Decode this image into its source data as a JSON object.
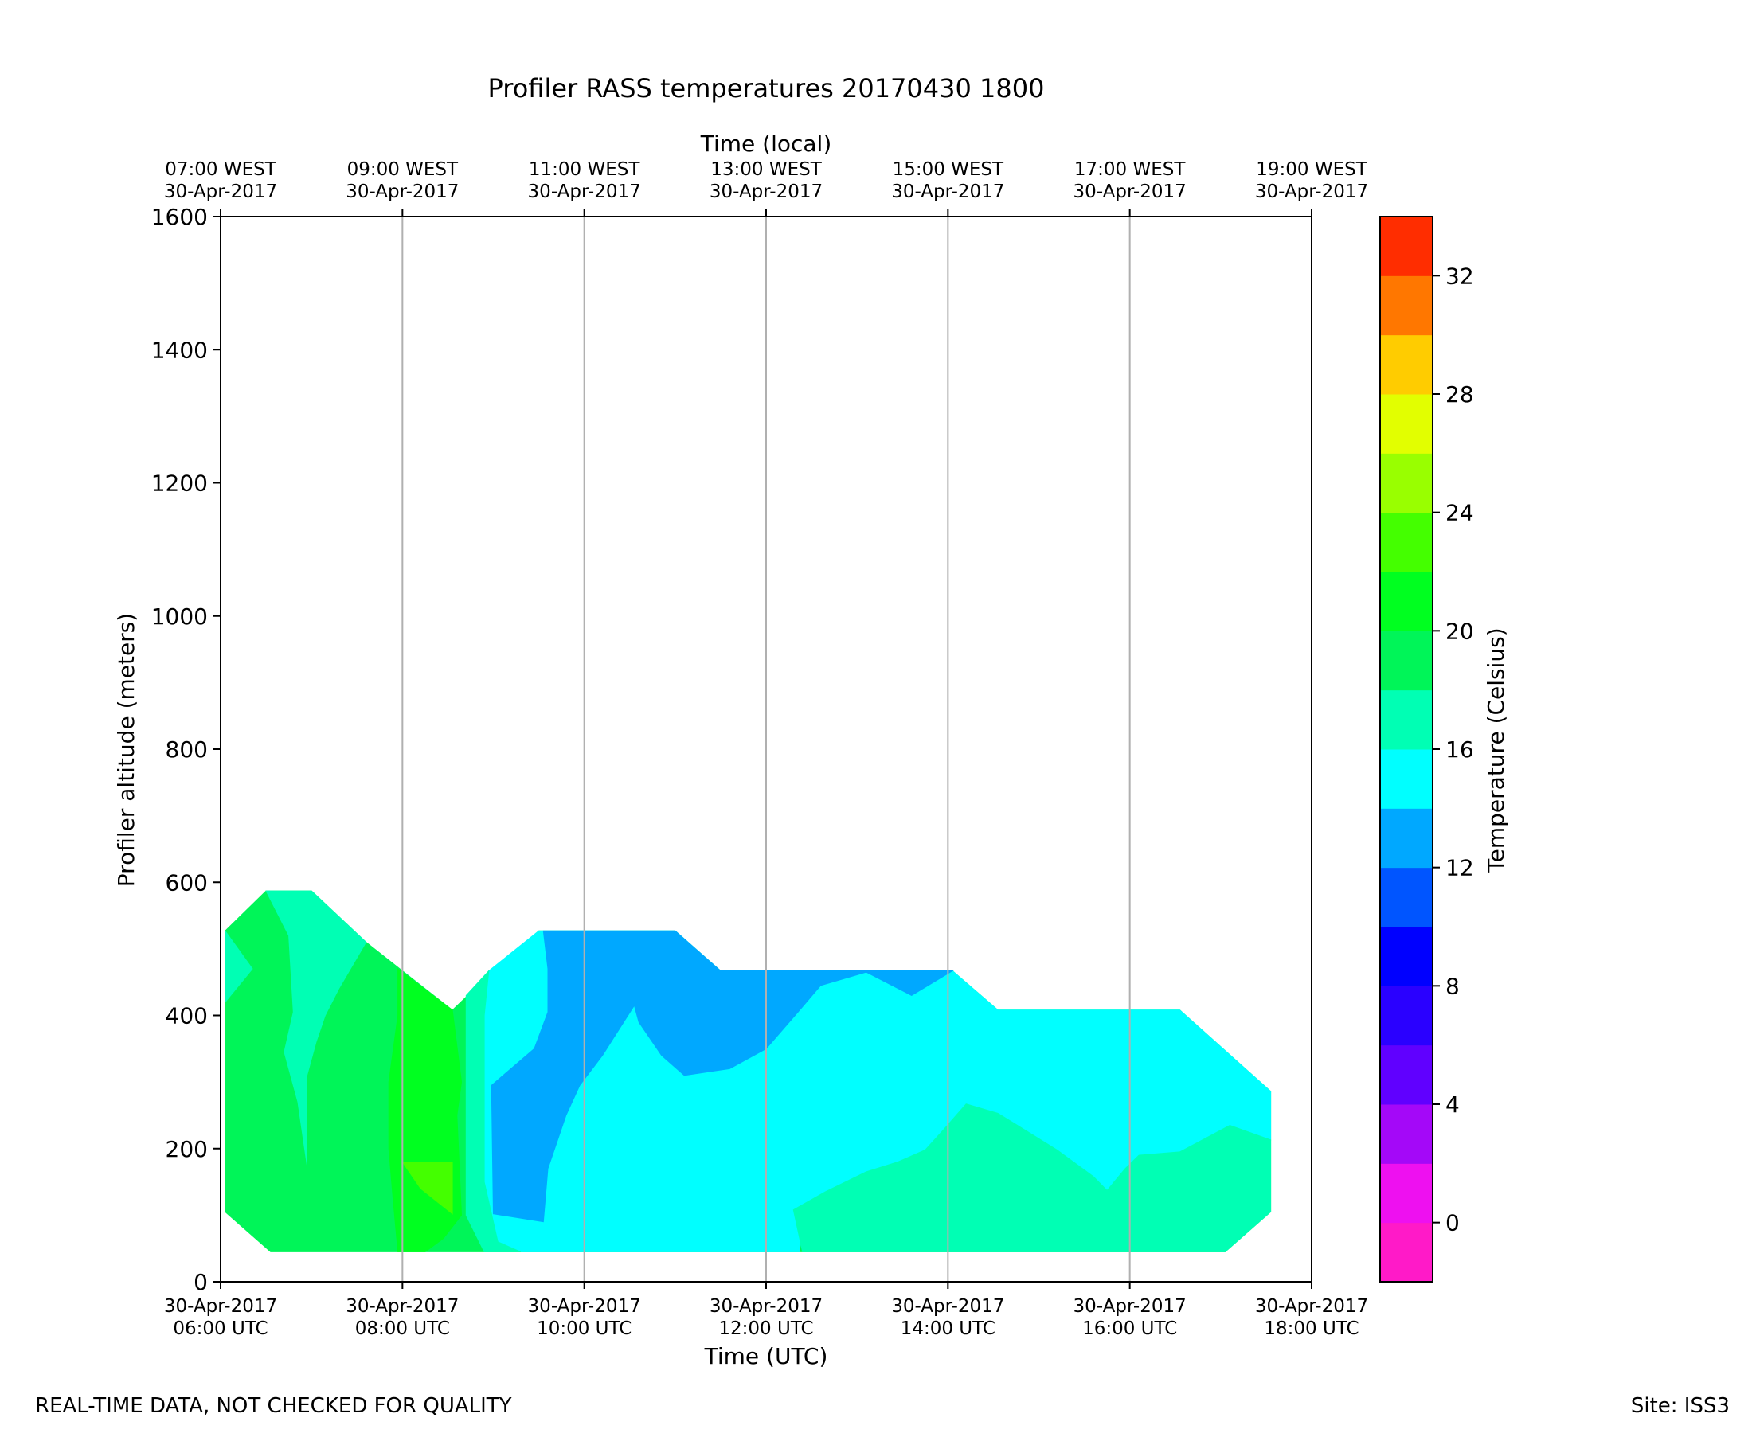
{
  "footer": {
    "disclaimer": "REAL-TIME DATA, NOT CHECKED FOR QUALITY",
    "site": "Site: ISS3"
  },
  "chart_data": {
    "type": "heatmap",
    "subtype": "filled-contour time-height",
    "title": "Profiler RASS temperatures 20170430 1800",
    "xlabel": "Time (UTC)",
    "x2label": "Time (local)",
    "ylabel": "Profiler altitude (meters)",
    "x_unit": "hours UTC on 30-Apr-2017",
    "xlim": [
      6,
      18
    ],
    "ylim": [
      0,
      1600
    ],
    "y_ticks": [
      0,
      200,
      400,
      600,
      800,
      1000,
      1200,
      1400,
      1600
    ],
    "x_ticks": [
      {
        "hour": 6,
        "line1": "30-Apr-2017",
        "line2": "06:00 UTC"
      },
      {
        "hour": 8,
        "line1": "30-Apr-2017",
        "line2": "08:00 UTC"
      },
      {
        "hour": 10,
        "line1": "30-Apr-2017",
        "line2": "10:00 UTC"
      },
      {
        "hour": 12,
        "line1": "30-Apr-2017",
        "line2": "12:00 UTC"
      },
      {
        "hour": 14,
        "line1": "30-Apr-2017",
        "line2": "14:00 UTC"
      },
      {
        "hour": 16,
        "line1": "30-Apr-2017",
        "line2": "16:00 UTC"
      },
      {
        "hour": 18,
        "line1": "30-Apr-2017",
        "line2": "18:00 UTC"
      }
    ],
    "x2_ticks": [
      {
        "hour": 6,
        "line1": "07:00 WEST",
        "line2": "30-Apr-2017"
      },
      {
        "hour": 8,
        "line1": "09:00 WEST",
        "line2": "30-Apr-2017"
      },
      {
        "hour": 10,
        "line1": "11:00 WEST",
        "line2": "30-Apr-2017"
      },
      {
        "hour": 12,
        "line1": "13:00 WEST",
        "line2": "30-Apr-2017"
      },
      {
        "hour": 14,
        "line1": "15:00 WEST",
        "line2": "30-Apr-2017"
      },
      {
        "hour": 16,
        "line1": "17:00 WEST",
        "line2": "30-Apr-2017"
      },
      {
        "hour": 18,
        "line1": "19:00 WEST",
        "line2": "30-Apr-2017"
      }
    ],
    "vertical_grid_hours": [
      8,
      10,
      12,
      14,
      16
    ],
    "colorbar": {
      "label": "Temperature (Celsius)",
      "levels": [
        -2,
        0,
        2,
        4,
        6,
        8,
        10,
        12,
        14,
        16,
        18,
        20,
        22,
        24,
        26,
        28,
        30,
        32,
        34
      ],
      "colors": [
        "#ff1ac8",
        "#ee10f0",
        "#a408f8",
        "#6000ff",
        "#2a00ff",
        "#0000ff",
        "#0055ff",
        "#00a8ff",
        "#00ffff",
        "#00ffb4",
        "#00f558",
        "#00ff20",
        "#44ff00",
        "#99ff00",
        "#e2ff00",
        "#ffcc00",
        "#ff7700",
        "#ff2d00"
      ],
      "ticks": [
        0,
        4,
        8,
        12,
        16,
        20,
        24,
        28,
        32
      ]
    },
    "regions": [
      {
        "name": "band-16-18-outer",
        "level": [
          16,
          18
        ],
        "color": "#00f558",
        "points": [
          [
            6.05,
            527
          ],
          [
            6.5,
            587
          ],
          [
            7,
            587
          ],
          [
            7.6,
            510
          ],
          [
            8,
            467
          ],
          [
            8.55,
            408
          ],
          [
            9,
            467
          ],
          [
            9.5,
            527
          ],
          [
            11,
            527
          ],
          [
            11.5,
            467
          ],
          [
            14.05,
            467
          ],
          [
            14.55,
            408
          ],
          [
            16.55,
            408
          ],
          [
            17.55,
            286
          ],
          [
            17.55,
            105
          ],
          [
            17.05,
            45
          ],
          [
            6.55,
            45
          ],
          [
            6.05,
            105
          ]
        ]
      },
      {
        "name": "band-12-14",
        "level": [
          12,
          14
        ],
        "color": "#00ffff",
        "points": [
          [
            8.95,
            467
          ],
          [
            9.5,
            527
          ],
          [
            11,
            527
          ],
          [
            11.5,
            467
          ],
          [
            14.05,
            467
          ],
          [
            14.55,
            408
          ],
          [
            16.55,
            408
          ],
          [
            17.55,
            286
          ],
          [
            17.55,
            213
          ],
          [
            17.1,
            235
          ],
          [
            16.55,
            195
          ],
          [
            16.1,
            190
          ],
          [
            15.95,
            170
          ],
          [
            15.75,
            137
          ],
          [
            15.6,
            158
          ],
          [
            15.2,
            198
          ],
          [
            14.55,
            253
          ],
          [
            14.2,
            267
          ],
          [
            13.95,
            225
          ],
          [
            13.75,
            198
          ],
          [
            13.5,
            183
          ],
          [
            13.1,
            150
          ],
          [
            12.4,
            108
          ],
          [
            12.37,
            45
          ],
          [
            9.3,
            45
          ],
          [
            9.05,
            60
          ],
          [
            8.9,
            150
          ],
          [
            8.9,
            300
          ],
          [
            8.9,
            400
          ]
        ]
      },
      {
        "name": "band-14-16-bottom-right",
        "level": [
          14,
          16
        ],
        "color": "#00ffb4",
        "points": [
          [
            12.3,
            108
          ],
          [
            12.65,
            135
          ],
          [
            13.1,
            165
          ],
          [
            13.45,
            180
          ],
          [
            13.75,
            198
          ],
          [
            13.95,
            228
          ],
          [
            14.2,
            267
          ],
          [
            14.55,
            253
          ],
          [
            15.2,
            198
          ],
          [
            15.6,
            158
          ],
          [
            15.75,
            137
          ],
          [
            15.95,
            170
          ],
          [
            16.1,
            190
          ],
          [
            16.55,
            195
          ],
          [
            17.1,
            235
          ],
          [
            17.55,
            213
          ],
          [
            17.55,
            105
          ],
          [
            17.05,
            45
          ],
          [
            12.4,
            45
          ]
        ]
      },
      {
        "name": "band-10-12",
        "level": [
          10,
          12
        ],
        "color": "#00a8ff",
        "points": [
          [
            9.55,
            527
          ],
          [
            11,
            527
          ],
          [
            11.5,
            467
          ],
          [
            14.05,
            467
          ],
          [
            13.6,
            430
          ],
          [
            13.1,
            465
          ],
          [
            12.6,
            445
          ],
          [
            12.35,
            405
          ],
          [
            12,
            350
          ],
          [
            11.6,
            320
          ],
          [
            11.1,
            310
          ],
          [
            10.85,
            340
          ],
          [
            10.6,
            390
          ],
          [
            10.55,
            415
          ],
          [
            10.2,
            340
          ],
          [
            9.95,
            295
          ],
          [
            9.8,
            250
          ],
          [
            9.6,
            170
          ],
          [
            9.55,
            90
          ],
          [
            9.0,
            102
          ],
          [
            8.98,
            295
          ],
          [
            9.45,
            350
          ],
          [
            9.6,
            405
          ],
          [
            9.6,
            470
          ]
        ]
      },
      {
        "name": "band-14-16-left-inner",
        "level": [
          14,
          16
        ],
        "color": "#00ffb4",
        "points": [
          [
            6.05,
            527
          ],
          [
            6.35,
            470
          ],
          [
            6.05,
            420
          ]
        ]
      },
      {
        "name": "band-14-16-upper-left",
        "level": [
          14,
          16
        ],
        "color": "#00ffb4",
        "points": [
          [
            6.5,
            587
          ],
          [
            7,
            587
          ],
          [
            7.6,
            510
          ],
          [
            7.3,
            440
          ],
          [
            7.15,
            400
          ],
          [
            7.05,
            360
          ],
          [
            6.95,
            310
          ],
          [
            6.95,
            175
          ],
          [
            6.85,
            270
          ],
          [
            6.7,
            345
          ],
          [
            6.8,
            405
          ],
          [
            6.75,
            520
          ]
        ]
      },
      {
        "name": "band-18-20",
        "level": [
          18,
          20
        ],
        "color": "#00ff20",
        "points": [
          [
            7.95,
            470
          ],
          [
            8.55,
            408
          ],
          [
            8.65,
            300
          ],
          [
            8.6,
            250
          ],
          [
            8.65,
            100
          ],
          [
            8.45,
            65
          ],
          [
            8.25,
            45
          ],
          [
            7.95,
            45
          ],
          [
            7.9,
            120
          ],
          [
            7.85,
            200
          ],
          [
            7.85,
            300
          ],
          [
            7.95,
            400
          ]
        ]
      },
      {
        "name": "band-20-22",
        "level": [
          20,
          22
        ],
        "color": "#44ff00",
        "points": [
          [
            8.0,
            180
          ],
          [
            8.55,
            180
          ],
          [
            8.55,
            102
          ],
          [
            8.2,
            140
          ]
        ]
      },
      {
        "name": "band-14-16-sliver",
        "level": [
          14,
          16
        ],
        "color": "#00ffb4",
        "points": [
          [
            8.95,
            467
          ],
          [
            8.7,
            430
          ],
          [
            8.7,
            100
          ],
          [
            8.9,
            45
          ],
          [
            9.3,
            45
          ],
          [
            9.05,
            60
          ],
          [
            8.9,
            150
          ],
          [
            8.9,
            300
          ],
          [
            8.9,
            400
          ]
        ]
      }
    ]
  }
}
